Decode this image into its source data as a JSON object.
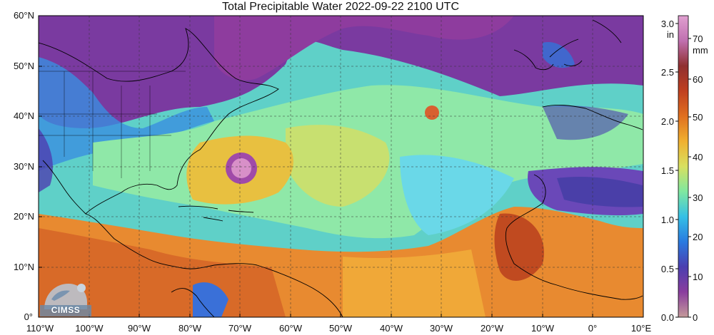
{
  "title": "Total Precipitable Water  2022-09-22 2100 UTC",
  "lat_ticks": [
    "60°N",
    "50°N",
    "40°N",
    "30°N",
    "20°N",
    "10°N",
    "0°"
  ],
  "lon_ticks": [
    "110°W",
    "100°W",
    "90°W",
    "80°W",
    "70°W",
    "60°W",
    "50°W",
    "40°W",
    "30°W",
    "20°W",
    "10°W",
    "0°",
    "10°E"
  ],
  "colorbar": {
    "inch_unit": "in",
    "mm_unit": "mm",
    "inch_ticks": [
      "3.0",
      "2.5",
      "2.0",
      "1.5",
      "1.0",
      "0.5",
      "0.0"
    ],
    "mm_ticks": [
      "70",
      "60",
      "50",
      "40",
      "30",
      "20",
      "10",
      "0"
    ],
    "colors": [
      "#c49a9a",
      "#8a3d9e",
      "#4b3fb0",
      "#2a7ae0",
      "#35c0e6",
      "#7fe8a0",
      "#d8e060",
      "#f0b030",
      "#e07020",
      "#c04020",
      "#903030",
      "#c070b0",
      "#e0a0d0"
    ]
  },
  "logo": {
    "text": "CIMSS"
  }
}
